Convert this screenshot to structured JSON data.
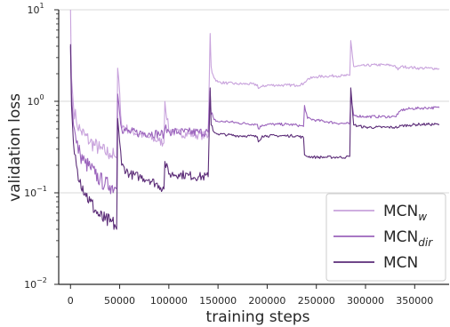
{
  "chart_data": {
    "type": "line",
    "xlabel": "training steps",
    "ylabel": "validation loss",
    "xlim": [
      -12000,
      385000
    ],
    "ylim": [
      0.01,
      10
    ],
    "yscale": "log",
    "grid": "horizontal",
    "legend_position": "lower-right",
    "x_ticks": [
      {
        "value": 0,
        "label": "0"
      },
      {
        "value": 50000,
        "label": "50000"
      },
      {
        "value": 100000,
        "label": "100000"
      },
      {
        "value": 150000,
        "label": "150000"
      },
      {
        "value": 200000,
        "label": "200000"
      },
      {
        "value": 250000,
        "label": "250000"
      },
      {
        "value": 300000,
        "label": "300000"
      },
      {
        "value": 350000,
        "label": "350000"
      }
    ],
    "y_ticks": [
      {
        "value": 0.01,
        "base": "10",
        "exp": "−2"
      },
      {
        "value": 0.1,
        "base": "10",
        "exp": "−1"
      },
      {
        "value": 1,
        "base": "10",
        "exp": "0"
      },
      {
        "value": 10,
        "base": "10",
        "exp": "1"
      }
    ],
    "series": [
      {
        "name": "MCN_w",
        "label_main": "MCN",
        "label_sub": "w",
        "sub_italic": true,
        "color": "#c8a2dc",
        "x": [
          0,
          1000,
          3000,
          6000,
          10000,
          15000,
          20000,
          25000,
          30000,
          35000,
          40000,
          45000,
          47000,
          48000,
          52000,
          60000,
          70000,
          80000,
          90000,
          95000,
          96000,
          100000,
          110000,
          120000,
          130000,
          140000,
          142000,
          143000,
          146000,
          150000,
          160000,
          170000,
          180000,
          190000,
          191000,
          195000,
          200000,
          210000,
          220000,
          230000,
          237000,
          238000,
          241000,
          250000,
          260000,
          270000,
          280000,
          284000,
          285000,
          288000,
          300000,
          310000,
          320000,
          330000,
          333000,
          336000,
          345000,
          355000,
          365000,
          375000
        ],
        "values": [
          10,
          1.8,
          0.9,
          0.6,
          0.48,
          0.42,
          0.36,
          0.33,
          0.3,
          0.28,
          0.27,
          0.25,
          0.24,
          2.3,
          0.55,
          0.48,
          0.44,
          0.4,
          0.37,
          0.35,
          1.0,
          0.48,
          0.45,
          0.44,
          0.43,
          0.42,
          5.5,
          2.4,
          1.8,
          1.62,
          1.58,
          1.55,
          1.55,
          1.52,
          1.38,
          1.45,
          1.5,
          1.5,
          1.5,
          1.5,
          1.55,
          1.62,
          1.75,
          1.85,
          1.88,
          1.9,
          1.9,
          1.92,
          4.6,
          2.4,
          2.45,
          2.5,
          2.5,
          2.45,
          2.2,
          2.4,
          2.35,
          2.3,
          2.3,
          2.28
        ]
      },
      {
        "name": "MCN_dir",
        "label_main": "MCN",
        "label_sub": "dir",
        "sub_italic": true,
        "color": "#9b64bc",
        "x": [
          0,
          1000,
          3000,
          6000,
          10000,
          15000,
          20000,
          25000,
          30000,
          35000,
          40000,
          45000,
          47000,
          48000,
          52000,
          60000,
          70000,
          80000,
          90000,
          95000,
          96000,
          100000,
          110000,
          120000,
          130000,
          140000,
          142000,
          143000,
          146000,
          150000,
          160000,
          170000,
          180000,
          190000,
          191000,
          195000,
          200000,
          210000,
          220000,
          230000,
          237000,
          238000,
          241000,
          250000,
          260000,
          270000,
          280000,
          284000,
          285000,
          288000,
          300000,
          310000,
          320000,
          330000,
          333000,
          336000,
          345000,
          355000,
          365000,
          375000
        ],
        "values": [
          4.0,
          1.2,
          0.55,
          0.35,
          0.26,
          0.21,
          0.19,
          0.16,
          0.14,
          0.125,
          0.12,
          0.115,
          0.11,
          1.2,
          0.5,
          0.46,
          0.45,
          0.45,
          0.44,
          0.44,
          0.5,
          0.47,
          0.46,
          0.46,
          0.46,
          0.46,
          1.3,
          0.72,
          0.63,
          0.6,
          0.6,
          0.58,
          0.57,
          0.56,
          0.5,
          0.55,
          0.56,
          0.56,
          0.56,
          0.55,
          0.53,
          0.9,
          0.65,
          0.62,
          0.6,
          0.58,
          0.57,
          0.57,
          1.1,
          0.7,
          0.68,
          0.68,
          0.68,
          0.68,
          0.72,
          0.8,
          0.83,
          0.84,
          0.85,
          0.85
        ]
      },
      {
        "name": "MCN",
        "label_main": "MCN",
        "label_sub": "",
        "sub_italic": false,
        "color": "#5c2d78",
        "x": [
          0,
          1000,
          3000,
          6000,
          10000,
          15000,
          20000,
          25000,
          30000,
          35000,
          40000,
          45000,
          47000,
          48000,
          52000,
          60000,
          70000,
          80000,
          90000,
          95000,
          96000,
          100000,
          110000,
          120000,
          130000,
          140000,
          142000,
          143000,
          146000,
          150000,
          160000,
          170000,
          180000,
          190000,
          191000,
          195000,
          200000,
          210000,
          220000,
          230000,
          237000,
          238000,
          241000,
          250000,
          260000,
          270000,
          280000,
          284000,
          285000,
          288000,
          300000,
          310000,
          320000,
          330000,
          333000,
          336000,
          345000,
          355000,
          365000,
          375000
        ],
        "values": [
          4.2,
          0.9,
          0.35,
          0.2,
          0.14,
          0.1,
          0.08,
          0.065,
          0.055,
          0.05,
          0.048,
          0.045,
          0.04,
          0.65,
          0.2,
          0.16,
          0.15,
          0.14,
          0.12,
          0.11,
          0.22,
          0.16,
          0.16,
          0.155,
          0.15,
          0.15,
          1.4,
          0.55,
          0.46,
          0.44,
          0.43,
          0.42,
          0.42,
          0.41,
          0.36,
          0.42,
          0.42,
          0.42,
          0.42,
          0.42,
          0.4,
          0.26,
          0.25,
          0.245,
          0.245,
          0.245,
          0.245,
          0.25,
          1.4,
          0.55,
          0.52,
          0.52,
          0.52,
          0.52,
          0.52,
          0.54,
          0.55,
          0.56,
          0.56,
          0.56
        ]
      }
    ]
  }
}
